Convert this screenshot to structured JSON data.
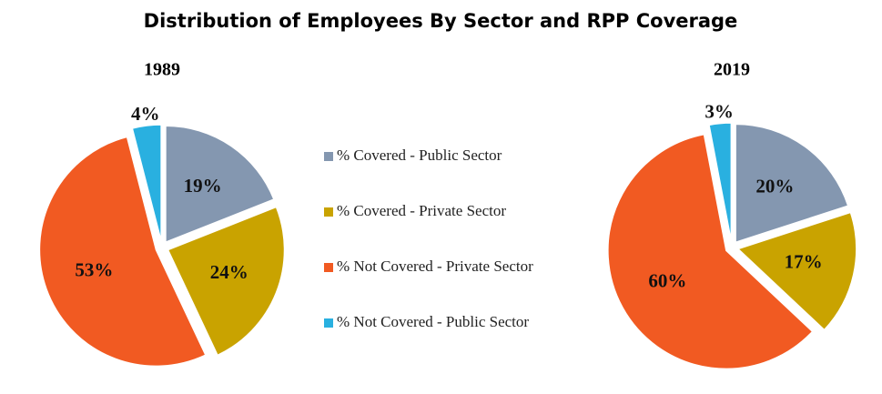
{
  "title": "Distribution of Employees By Sector and RPP Coverage",
  "chart_data": [
    {
      "type": "pie",
      "title": "1989",
      "categories": [
        "% Covered - Public Sector",
        "% Covered - Private Sector",
        "% Not Covered - Private Sector",
        "% Not Covered - Public Sector"
      ],
      "values": [
        19,
        24,
        53,
        4
      ],
      "value_labels": [
        "19%",
        "24%",
        "53%",
        "4%"
      ],
      "colors": [
        "#8497b0",
        "#c9a300",
        "#f15a22",
        "#29b0e0"
      ]
    },
    {
      "type": "pie",
      "title": "2019",
      "categories": [
        "% Covered - Public Sector",
        "% Covered - Private Sector",
        "% Not Covered - Private Sector",
        "% Not Covered - Public Sector"
      ],
      "values": [
        20,
        17,
        60,
        3
      ],
      "value_labels": [
        "20%",
        "17%",
        "60%",
        "3%"
      ],
      "colors": [
        "#8497b0",
        "#c9a300",
        "#f15a22",
        "#29b0e0"
      ]
    }
  ]
}
